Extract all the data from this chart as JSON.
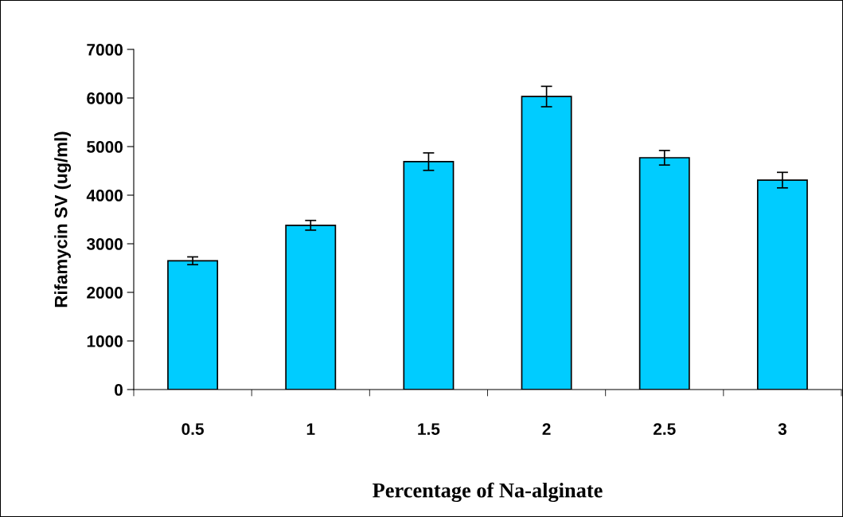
{
  "chart_data": {
    "type": "bar",
    "xlabel": "Percentage of Na-alginate",
    "ylabel": "Rifamycin SV (ug/ml)",
    "categories": [
      "0.5",
      "1",
      "1.5",
      "2",
      "2.5",
      "3"
    ],
    "values": [
      2650,
      3380,
      4690,
      6030,
      4770,
      4310
    ],
    "errors": [
      80,
      100,
      180,
      210,
      150,
      160
    ],
    "color": "#00ccff",
    "ylim": [
      0,
      7000
    ],
    "yticks": [
      0,
      1000,
      2000,
      3000,
      4000,
      5000,
      6000,
      7000
    ],
    "grid": false,
    "legend": false
  }
}
